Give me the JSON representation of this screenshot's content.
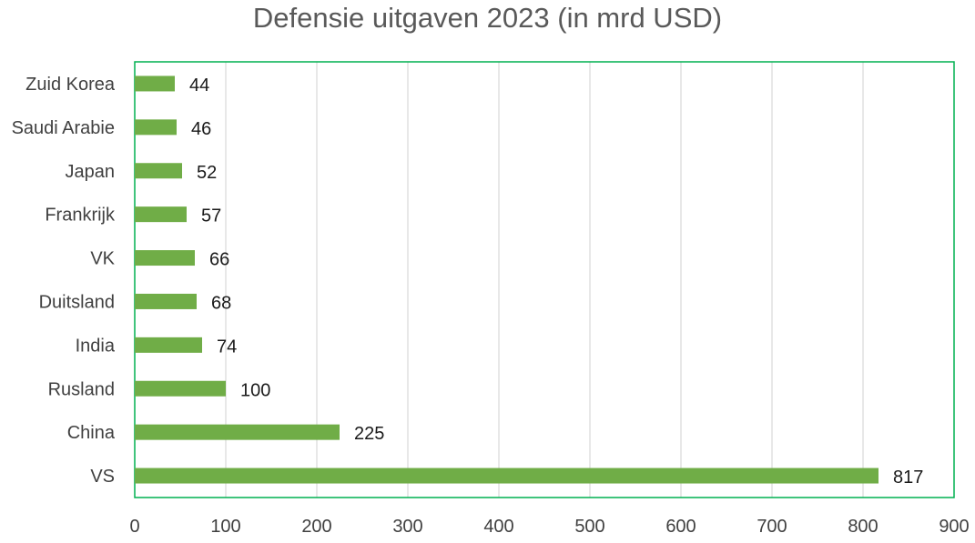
{
  "chart_data": {
    "type": "bar",
    "orientation": "horizontal",
    "title": "Defensie uitgaven 2023 (in mrd USD)",
    "xlabel": "",
    "ylabel": "",
    "categories": [
      "VS",
      "China",
      "Rusland",
      "India",
      "Duitsland",
      "VK",
      "Frankrijk",
      "Japan",
      "Saudi Arabie",
      "Zuid Korea"
    ],
    "values": [
      817,
      225,
      100,
      74,
      68,
      66,
      57,
      52,
      46,
      44
    ],
    "data_labels": [
      "817",
      "225",
      "100",
      "74",
      "68",
      "66",
      "57",
      "52",
      "46",
      "44"
    ],
    "xlim": [
      0,
      900
    ],
    "xticks": [
      0,
      100,
      200,
      300,
      400,
      500,
      600,
      700,
      800,
      900
    ],
    "xtick_labels": [
      "0",
      "100",
      "200",
      "300",
      "400",
      "500",
      "600",
      "700",
      "800",
      "900"
    ],
    "grid": "vertical",
    "legend": "none",
    "bar_color": "#70ad47",
    "frame_color": "#00b050",
    "grid_color": "#d9d9d9"
  }
}
